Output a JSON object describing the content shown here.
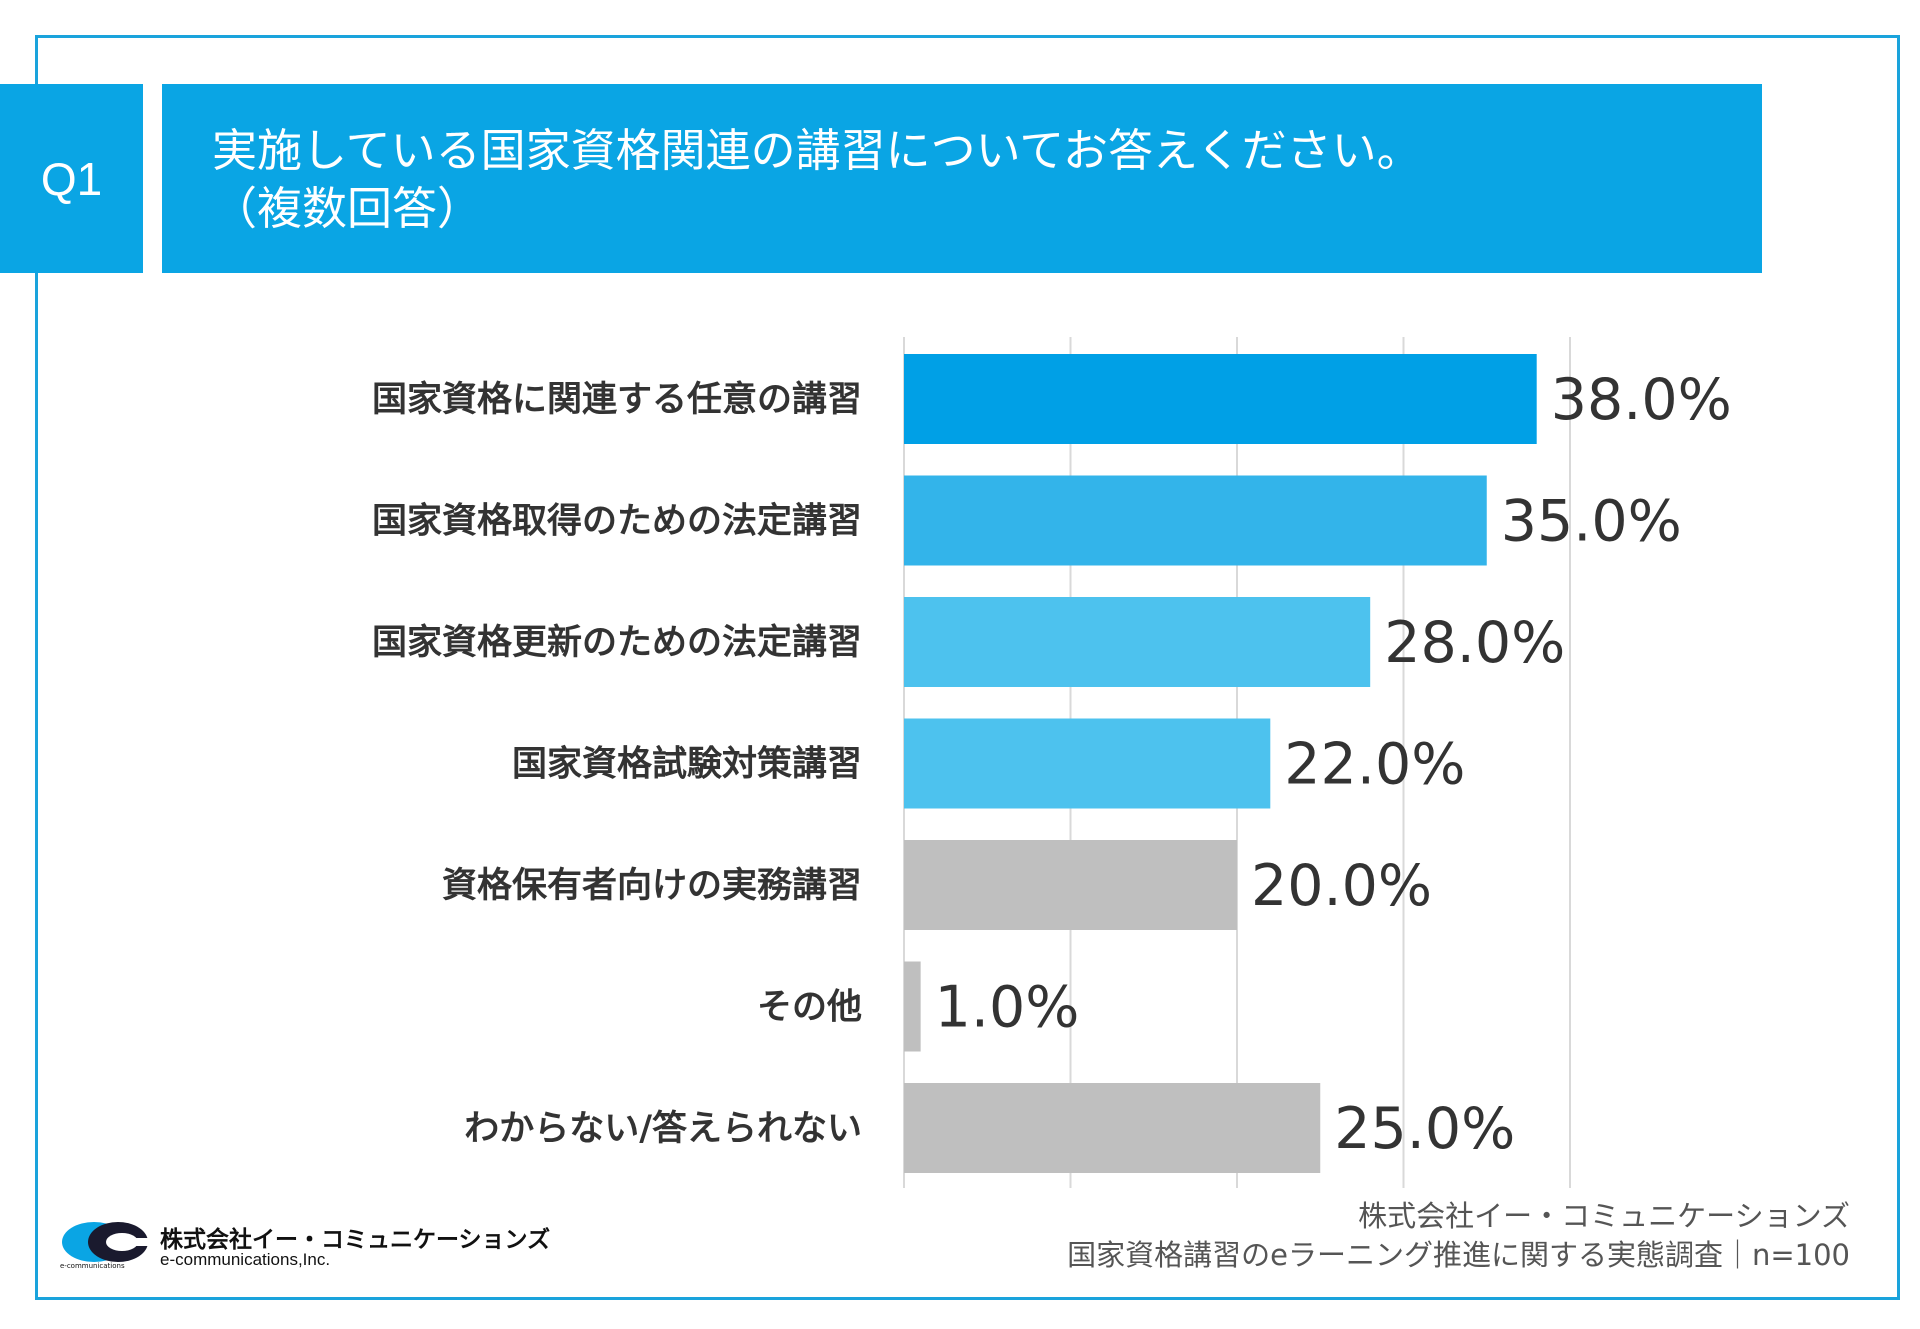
{
  "question": {
    "number": "Q1",
    "title_line1": "実施している国家資格関連の講習についてお答えください。",
    "title_line2": "（複数回答）"
  },
  "colors": {
    "brand": "#0aa5e4",
    "bar_top": "#00a0e6",
    "bar_mid1": "#33b4ea",
    "bar_mid": "#4dc2ee",
    "bar_gray": "#bfbfbf",
    "grid": "#d9d9d9"
  },
  "chart_data": {
    "type": "bar",
    "orientation": "horizontal",
    "title": "実施している国家資格関連の講習についてお答えください。（複数回答）",
    "categories": [
      "国家資格に関連する任意の講習",
      "国家資格取得のための法定講習",
      "国家資格更新のための法定講習",
      "国家資格試験対策講習",
      "資格保有者向けの実務講習",
      "その他",
      "わからない/答えられない"
    ],
    "values": [
      38.0,
      35.0,
      28.0,
      22.0,
      20.0,
      1.0,
      25.0
    ],
    "value_labels": [
      "38.0%",
      "35.0%",
      "28.0%",
      "22.0%",
      "20.0%",
      "1.0%",
      "25.0%"
    ],
    "bar_colors": [
      "#00a0e6",
      "#33b4ea",
      "#4dc2ee",
      "#4dc2ee",
      "#bfbfbf",
      "#bfbfbf",
      "#bfbfbf"
    ],
    "xlim": [
      0,
      40
    ],
    "gridlines": [
      0,
      10,
      20,
      30,
      40
    ],
    "xlabel": "",
    "ylabel": ""
  },
  "logo": {
    "name_jp": "株式会社イー・コミュニケーションズ",
    "name_en": "e-communications,Inc.",
    "mark_text": "e-communications"
  },
  "source": {
    "line1": "株式会社イー・コミュニケーションズ",
    "line2": "国家資格講習のeラーニング推進に関する実態調査｜n=100"
  }
}
